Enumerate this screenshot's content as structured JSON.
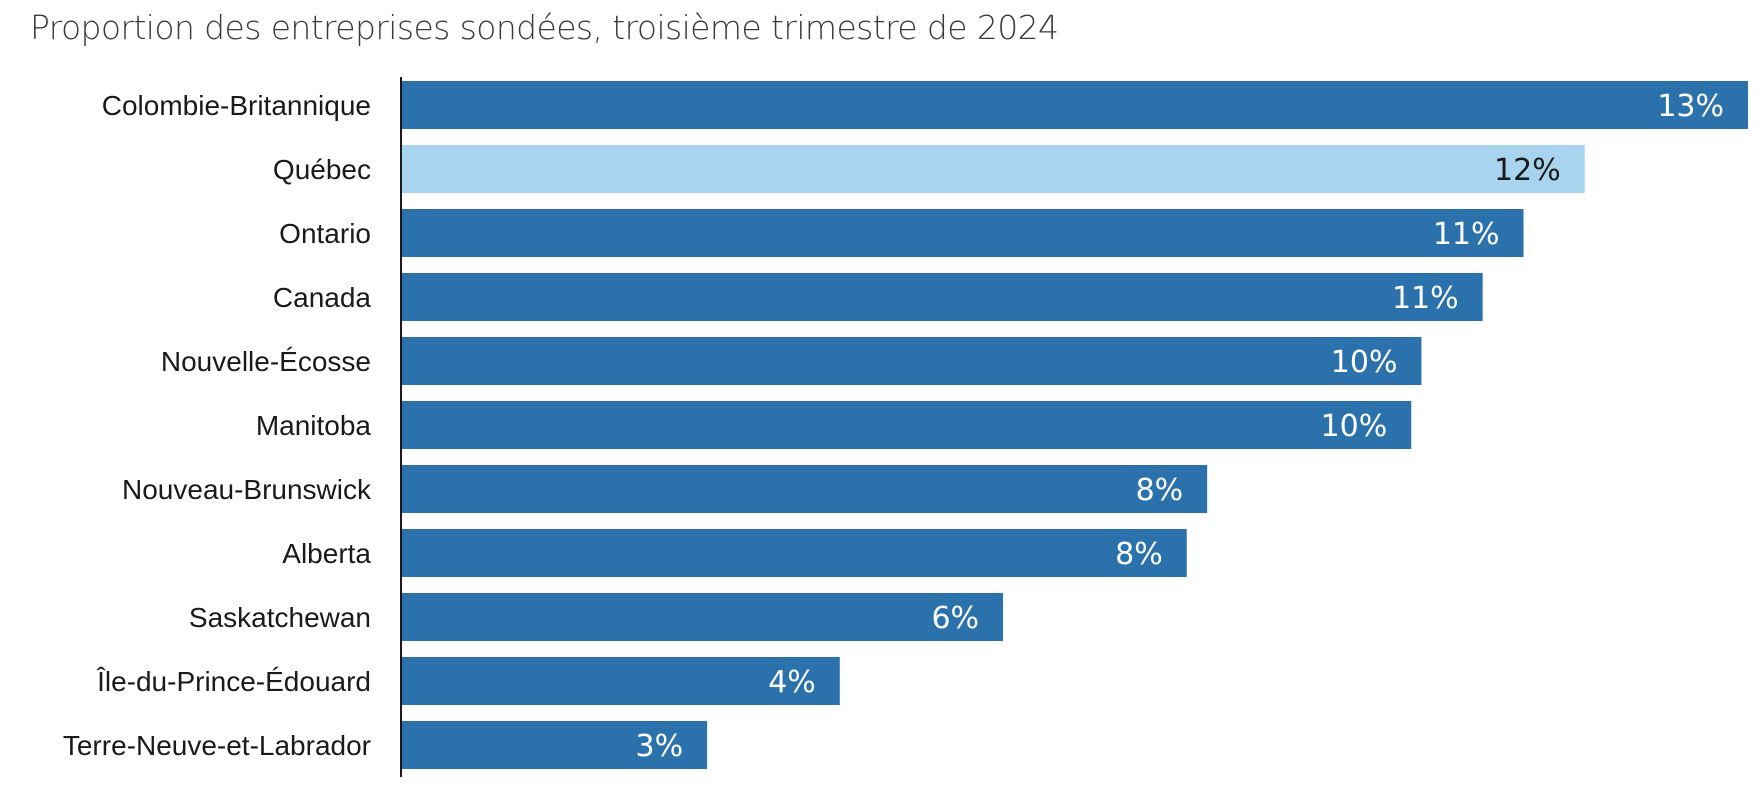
{
  "chart_data": {
    "type": "bar",
    "orientation": "horizontal",
    "title": "",
    "subtitle": "Proportion des entreprises sondées, troisième trimestre de 2024",
    "categories": [
      "Colombie-Britannique",
      "Québec",
      "Ontario",
      "Canada",
      "Nouvelle-Écosse",
      "Manitoba",
      "Nouveau-Brunswick",
      "Alberta",
      "Saskatchewan",
      "Île-du-Prince-Édouard",
      "Terre-Neuve-et-Labrador"
    ],
    "values": [
      13.2,
      11.6,
      11.0,
      10.6,
      10.0,
      9.9,
      7.9,
      7.7,
      5.9,
      4.3,
      3.0
    ],
    "labels": [
      "13%",
      "12%",
      "11%",
      "11%",
      "10%",
      "10%",
      "8%",
      "8%",
      "6%",
      "4%",
      "3%"
    ],
    "highlight_index": 1,
    "colors": {
      "default_bar": "#2b72ad",
      "highlight_bar": "#a8d4f0",
      "default_label": "#ffffff",
      "highlight_label": "#1a1a1a",
      "category_text": "#1a1a1a",
      "axis": "#1a1a1a"
    },
    "xlim": [
      0,
      13.2
    ],
    "grid": false,
    "legend": "none"
  }
}
